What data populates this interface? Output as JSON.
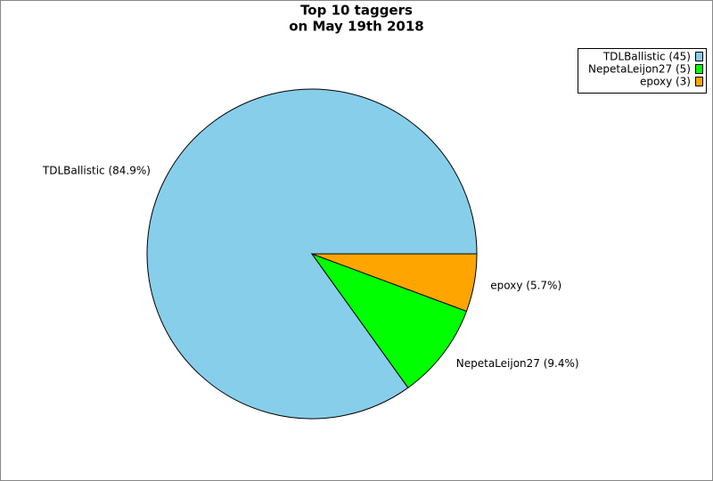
{
  "chart_data": {
    "type": "pie",
    "title": [
      "Top 10 taggers",
      "on May 19th 2018"
    ],
    "slices": [
      {
        "label": "TDLBallistic (45)",
        "value": 45,
        "value_label": "TDLBallistic (84.9%)",
        "color": "#87ceeb"
      },
      {
        "label": "NepetaLeijon27 (5)",
        "value": 5,
        "value_label": "NepetaLeijon27 (9.4%)",
        "color": "#00ff00"
      },
      {
        "label": "epoxy (3)",
        "value": 3,
        "value_label": "epoxy (5.7%)",
        "color": "#ffa500"
      }
    ],
    "legend": "top-right"
  }
}
